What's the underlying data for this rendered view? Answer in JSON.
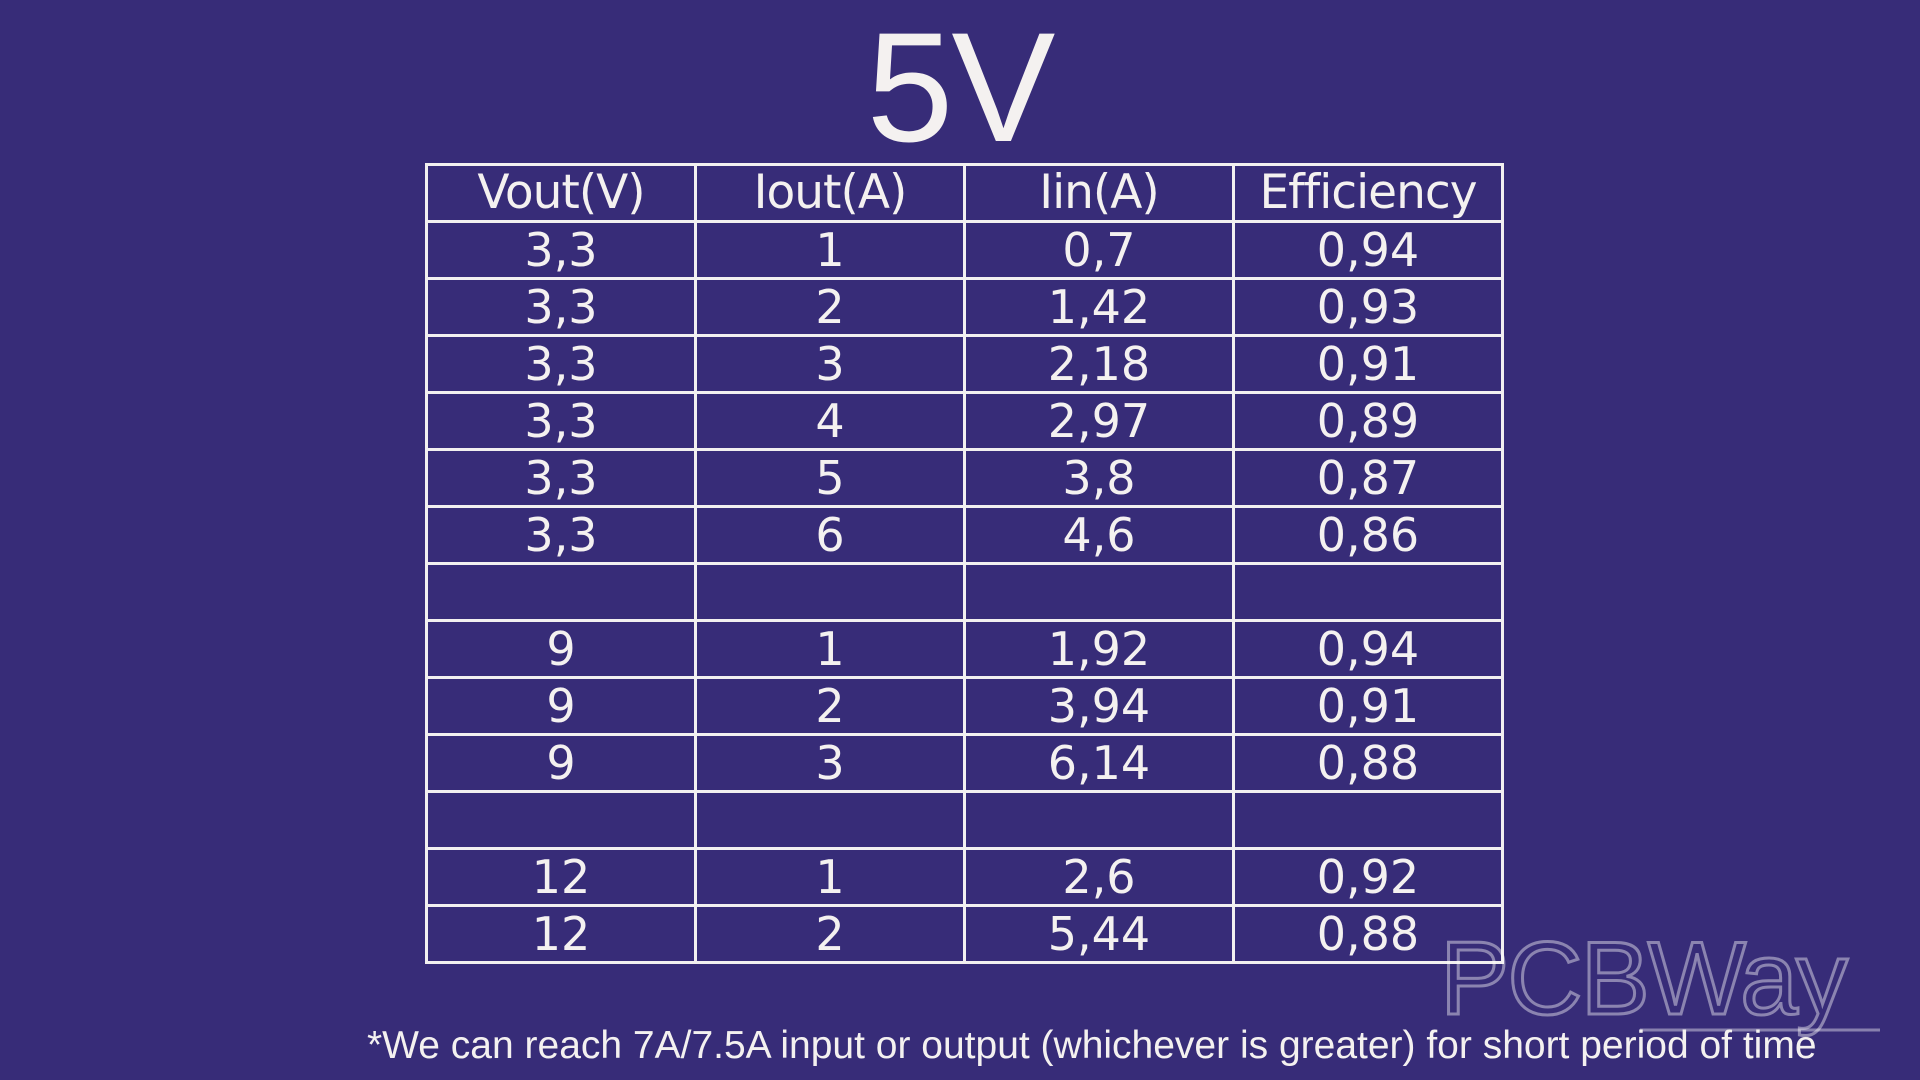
{
  "title": "5V",
  "table": {
    "headers": [
      "Vout(V)",
      "Iout(A)",
      "Iin(A)",
      "Efficiency"
    ],
    "rows": [
      [
        "3,3",
        "1",
        "0,7",
        "0,94"
      ],
      [
        "3,3",
        "2",
        "1,42",
        "0,93"
      ],
      [
        "3,3",
        "3",
        "2,18",
        "0,91"
      ],
      [
        "3,3",
        "4",
        "2,97",
        "0,89"
      ],
      [
        "3,3",
        "5",
        "3,8",
        "0,87"
      ],
      [
        "3,3",
        "6",
        "4,6",
        "0,86"
      ],
      [
        "",
        "",
        "",
        ""
      ],
      [
        "9",
        "1",
        "1,92",
        "0,94"
      ],
      [
        "9",
        "2",
        "3,94",
        "0,91"
      ],
      [
        "9",
        "3",
        "6,14",
        "0,88"
      ],
      [
        "",
        "",
        "",
        ""
      ],
      [
        "12",
        "1",
        "2,6",
        "0,92"
      ],
      [
        "12",
        "2",
        "5,44",
        "0,88"
      ]
    ]
  },
  "watermark": "PCBWay",
  "footnote": "*We can reach 7A/7.5A input or output (whichever is greater) for short period of time",
  "colors": {
    "background": "#372c78",
    "text": "#f4f1f0",
    "grid": "#f2f0f0"
  }
}
